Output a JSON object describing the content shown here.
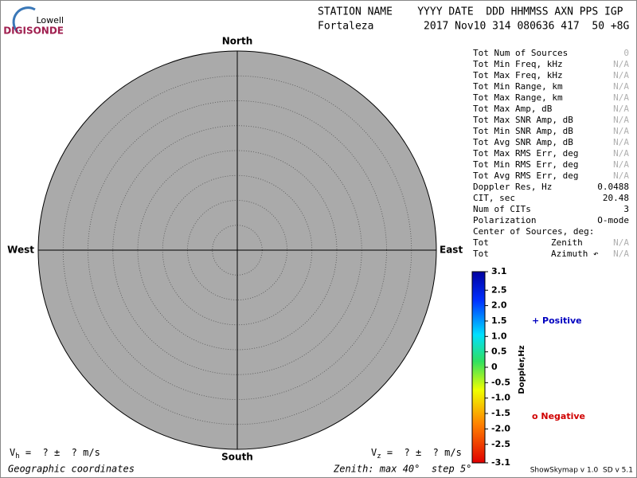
{
  "logo": {
    "top": "Lowell",
    "bottom": "DIGISONDE"
  },
  "header": {
    "labels": "STATION NAME    YYYY DATE  DDD HHMMSS AXN PPS IGP",
    "values": "Fortaleza        2017 Nov10 314 080636 417  50 +8G"
  },
  "skymap": {
    "north": "North",
    "south": "South",
    "east": "East",
    "west": "West"
  },
  "stats": [
    {
      "label": "Tot Num of Sources",
      "value": "0",
      "muted": true
    },
    {
      "label": "Tot Min Freq, kHz",
      "value": "N/A",
      "muted": true
    },
    {
      "label": "Tot Max Freq, kHz",
      "value": "N/A",
      "muted": true
    },
    {
      "label": "Tot Min Range, km",
      "value": "N/A",
      "muted": true
    },
    {
      "label": "Tot Max Range, km",
      "value": "N/A",
      "muted": true
    },
    {
      "label": "Tot Max Amp, dB",
      "value": "N/A",
      "muted": true
    },
    {
      "label": "Tot Max SNR Amp, dB",
      "value": "N/A",
      "muted": true
    },
    {
      "label": "Tot Min SNR Amp, dB",
      "value": "N/A",
      "muted": true
    },
    {
      "label": "Tot Avg SNR Amp, dB",
      "value": "N/A",
      "muted": true
    },
    {
      "label": "Tot Max RMS Err, deg",
      "value": "N/A",
      "muted": true
    },
    {
      "label": "Tot Min RMS Err, deg",
      "value": "N/A",
      "muted": true
    },
    {
      "label": "Tot Avg RMS Err, deg",
      "value": "N/A",
      "muted": true
    },
    {
      "label": "Doppler Res, Hz",
      "value": "0.0488",
      "muted": false
    },
    {
      "label": "CIT, sec",
      "value": "20.48",
      "muted": false
    },
    {
      "label": "Num of CITs",
      "value": "3",
      "muted": false
    },
    {
      "label": "Polarization",
      "value": "O-mode",
      "muted": false
    },
    {
      "label": "Center of Sources, deg:"
    },
    {
      "label": "Tot",
      "mid": "Zenith",
      "value": "N/A",
      "muted": true
    },
    {
      "label": "Tot",
      "mid": "Azimuth ↶",
      "value": "N/A",
      "muted": true
    }
  ],
  "colorbar": {
    "label": "Doppler,Hz",
    "ticks": [
      "3.1",
      "2.5",
      "2.0",
      "1.5",
      "1.0",
      "0.5",
      "0",
      "-0.5",
      "-1.0",
      "-1.5",
      "-2.0",
      "-2.5",
      "-3.1"
    ]
  },
  "legend": {
    "positive": "+ Positive",
    "negative": "o Negative"
  },
  "footer": {
    "vh_symbol": "V",
    "vh_sub": "h",
    "vh_text": " =  ? ±  ? m/s",
    "vz_symbol": "V",
    "vz_sub": "z",
    "vz_text": " =  ? ±  ? m/s",
    "coords": "Geographic coordinates",
    "zenith": "Zenith: max 40°  step 5°",
    "version": "ShowSkymap v 1.0  SD v 5.1"
  }
}
